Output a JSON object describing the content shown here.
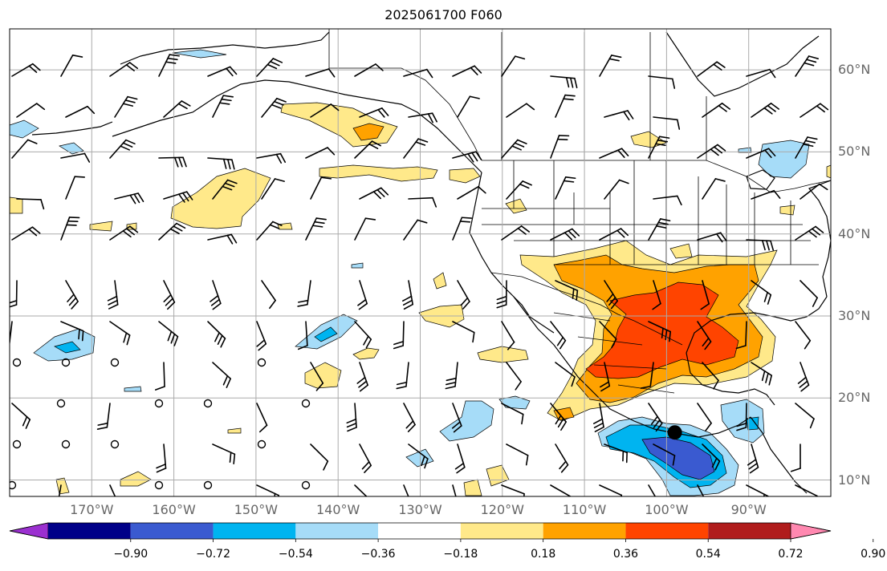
{
  "title": "2025061700 F060",
  "map": {
    "projection": "plate-carree",
    "lon_range": [
      -180,
      -80
    ],
    "lat_range": [
      8,
      65
    ],
    "gridlines": true,
    "lon_ticks": [
      {
        "value": -170,
        "label": "170°W"
      },
      {
        "value": -160,
        "label": "160°W"
      },
      {
        "value": -150,
        "label": "150°W"
      },
      {
        "value": -140,
        "label": "140°W"
      },
      {
        "value": -130,
        "label": "130°W"
      },
      {
        "value": -120,
        "label": "120°W"
      },
      {
        "value": -110,
        "label": "110°W"
      },
      {
        "value": -100,
        "label": "100°W"
      },
      {
        "value": -90,
        "label": "90°W"
      }
    ],
    "lat_ticks": [
      {
        "value": 60,
        "label": "60°N"
      },
      {
        "value": 50,
        "label": "50°N"
      },
      {
        "value": 40,
        "label": "40°N"
      },
      {
        "value": 30,
        "label": "30°N"
      },
      {
        "value": 20,
        "label": "20°N"
      },
      {
        "value": 10,
        "label": "10°N"
      }
    ],
    "marker": {
      "lon": -99,
      "lat": 15.8,
      "symbol": "black-dot"
    }
  },
  "colorbar": {
    "extend": "both",
    "levels": [
      "−0.90",
      "−0.72",
      "−0.54",
      "−0.36",
      "−0.18",
      "0.18",
      "0.36",
      "0.54",
      "0.72",
      "0.90"
    ],
    "under_color": "#9b30d0",
    "over_color": "#ff88b0",
    "colors": [
      "#000088",
      "#3a5ad0",
      "#00b4f0",
      "#a6dcf8",
      "#ffffff",
      "#ffe98a",
      "#ffa200",
      "#ff4400",
      "#b01c1c"
    ]
  },
  "fill_colors": {
    "pos1": "#ffe98a",
    "pos2": "#ffa200",
    "pos3": "#ff4400",
    "neg1": "#a6dcf8",
    "neg2": "#00b4f0",
    "neg3": "#3a5ad0"
  }
}
